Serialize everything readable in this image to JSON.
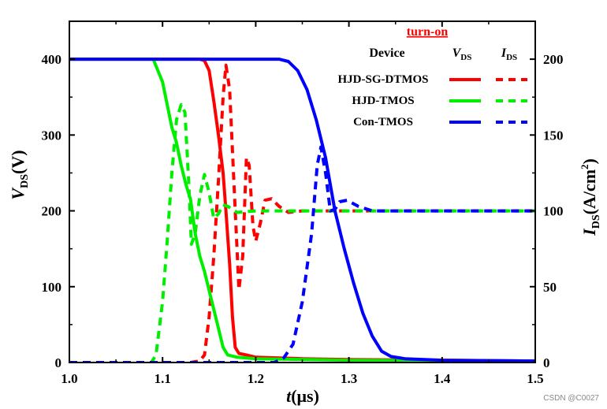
{
  "chart_data": {
    "type": "line",
    "title": "",
    "xlabel": {
      "italic": "t",
      "rest": "(μs)"
    },
    "ylabel_left": {
      "italic": "V",
      "sub": "DS",
      "rest": "(V)"
    },
    "ylabel_right": {
      "italic": "I",
      "sub": "DS",
      "rest": "(A/cm",
      "sup": "2",
      "close": ")"
    },
    "xlim": [
      1.0,
      1.5
    ],
    "ylim_left": [
      0,
      450
    ],
    "ylim_right": [
      0,
      225
    ],
    "x_ticks": [
      "1.0",
      "1.1",
      "1.2",
      "1.3",
      "1.4",
      "1.5"
    ],
    "y_ticks_left": [
      "0",
      "100",
      "200",
      "300",
      "400"
    ],
    "y_ticks_right": [
      "0",
      "50",
      "100",
      "150",
      "200"
    ],
    "grid": false,
    "legend": {
      "title": "turn-on",
      "header_device": "Device",
      "header_v": {
        "italic": "V",
        "sub": "DS"
      },
      "header_i": {
        "italic": "I",
        "sub": "DS"
      },
      "placement": "top-right"
    },
    "colors": {
      "red": "#ff0000",
      "green": "#00ee00",
      "blue": "#0000ff"
    },
    "series": [
      {
        "name": "HJD-SG-DTMOS",
        "quantity": "VDS",
        "axis": "left",
        "style": "solid",
        "color": "#ff0000",
        "points": [
          [
            1.0,
            400
          ],
          [
            1.14,
            400
          ],
          [
            1.145,
            398
          ],
          [
            1.15,
            385
          ],
          [
            1.155,
            345
          ],
          [
            1.16,
            300
          ],
          [
            1.165,
            250
          ],
          [
            1.168,
            200
          ],
          [
            1.172,
            130
          ],
          [
            1.175,
            60
          ],
          [
            1.178,
            20
          ],
          [
            1.182,
            12
          ],
          [
            1.19,
            10
          ],
          [
            1.2,
            7
          ],
          [
            1.25,
            5
          ],
          [
            1.3,
            4
          ],
          [
            1.4,
            3
          ],
          [
            1.5,
            2
          ]
        ]
      },
      {
        "name": "HJD-SG-DTMOS",
        "quantity": "IDS",
        "axis": "right",
        "style": "dashed",
        "color": "#ff0000",
        "points": [
          [
            1.0,
            0
          ],
          [
            1.13,
            0
          ],
          [
            1.14,
            1
          ],
          [
            1.145,
            5
          ],
          [
            1.15,
            30
          ],
          [
            1.155,
            70
          ],
          [
            1.16,
            120
          ],
          [
            1.165,
            175
          ],
          [
            1.168,
            196
          ],
          [
            1.172,
            180
          ],
          [
            1.178,
            100
          ],
          [
            1.182,
            48
          ],
          [
            1.186,
            70
          ],
          [
            1.19,
            135
          ],
          [
            1.193,
            130
          ],
          [
            1.197,
            90
          ],
          [
            1.2,
            80
          ],
          [
            1.205,
            92
          ],
          [
            1.21,
            107
          ],
          [
            1.217,
            108
          ],
          [
            1.225,
            103
          ],
          [
            1.235,
            99
          ],
          [
            1.25,
            100
          ],
          [
            1.5,
            100
          ]
        ]
      },
      {
        "name": "HJD-TMOS",
        "quantity": "VDS",
        "axis": "left",
        "style": "solid",
        "color": "#00ee00",
        "points": [
          [
            1.0,
            400
          ],
          [
            1.09,
            400
          ],
          [
            1.1,
            370
          ],
          [
            1.105,
            340
          ],
          [
            1.11,
            310
          ],
          [
            1.115,
            290
          ],
          [
            1.12,
            260
          ],
          [
            1.125,
            235
          ],
          [
            1.13,
            215
          ],
          [
            1.135,
            170
          ],
          [
            1.14,
            140
          ],
          [
            1.145,
            120
          ],
          [
            1.15,
            95
          ],
          [
            1.155,
            70
          ],
          [
            1.16,
            45
          ],
          [
            1.165,
            20
          ],
          [
            1.17,
            10
          ],
          [
            1.18,
            7
          ],
          [
            1.2,
            5
          ],
          [
            1.3,
            3
          ],
          [
            1.5,
            2
          ]
        ]
      },
      {
        "name": "HJD-TMOS",
        "quantity": "IDS",
        "axis": "right",
        "style": "dashed",
        "color": "#00ee00",
        "points": [
          [
            1.0,
            0
          ],
          [
            1.088,
            0
          ],
          [
            1.093,
            5
          ],
          [
            1.1,
            40
          ],
          [
            1.105,
            80
          ],
          [
            1.11,
            125
          ],
          [
            1.115,
            160
          ],
          [
            1.12,
            170
          ],
          [
            1.124,
            165
          ],
          [
            1.128,
            120
          ],
          [
            1.131,
            78
          ],
          [
            1.135,
            85
          ],
          [
            1.14,
            110
          ],
          [
            1.145,
            124
          ],
          [
            1.15,
            112
          ],
          [
            1.155,
            95
          ],
          [
            1.16,
            98
          ],
          [
            1.165,
            104
          ],
          [
            1.17,
            103
          ],
          [
            1.18,
            99
          ],
          [
            1.2,
            100
          ],
          [
            1.5,
            100
          ]
        ]
      },
      {
        "name": "Con-TMOS",
        "quantity": "VDS",
        "axis": "left",
        "style": "solid",
        "color": "#0000ff",
        "points": [
          [
            1.0,
            400
          ],
          [
            1.225,
            400
          ],
          [
            1.235,
            397
          ],
          [
            1.245,
            385
          ],
          [
            1.255,
            360
          ],
          [
            1.265,
            320
          ],
          [
            1.275,
            270
          ],
          [
            1.285,
            200
          ],
          [
            1.295,
            150
          ],
          [
            1.305,
            105
          ],
          [
            1.315,
            65
          ],
          [
            1.325,
            35
          ],
          [
            1.335,
            15
          ],
          [
            1.345,
            8
          ],
          [
            1.36,
            5
          ],
          [
            1.4,
            3
          ],
          [
            1.5,
            2
          ]
        ]
      },
      {
        "name": "Con-TMOS",
        "quantity": "IDS",
        "axis": "right",
        "style": "dashed",
        "color": "#0000ff",
        "points": [
          [
            1.0,
            0
          ],
          [
            1.22,
            0
          ],
          [
            1.23,
            3
          ],
          [
            1.24,
            12
          ],
          [
            1.25,
            40
          ],
          [
            1.26,
            85
          ],
          [
            1.266,
            130
          ],
          [
            1.27,
            142
          ],
          [
            1.275,
            125
          ],
          [
            1.28,
            100
          ],
          [
            1.285,
            101
          ],
          [
            1.29,
            106
          ],
          [
            1.298,
            107
          ],
          [
            1.31,
            103
          ],
          [
            1.325,
            100
          ],
          [
            1.35,
            100
          ],
          [
            1.5,
            100
          ]
        ]
      }
    ]
  },
  "watermark": "CSDN @C0027"
}
